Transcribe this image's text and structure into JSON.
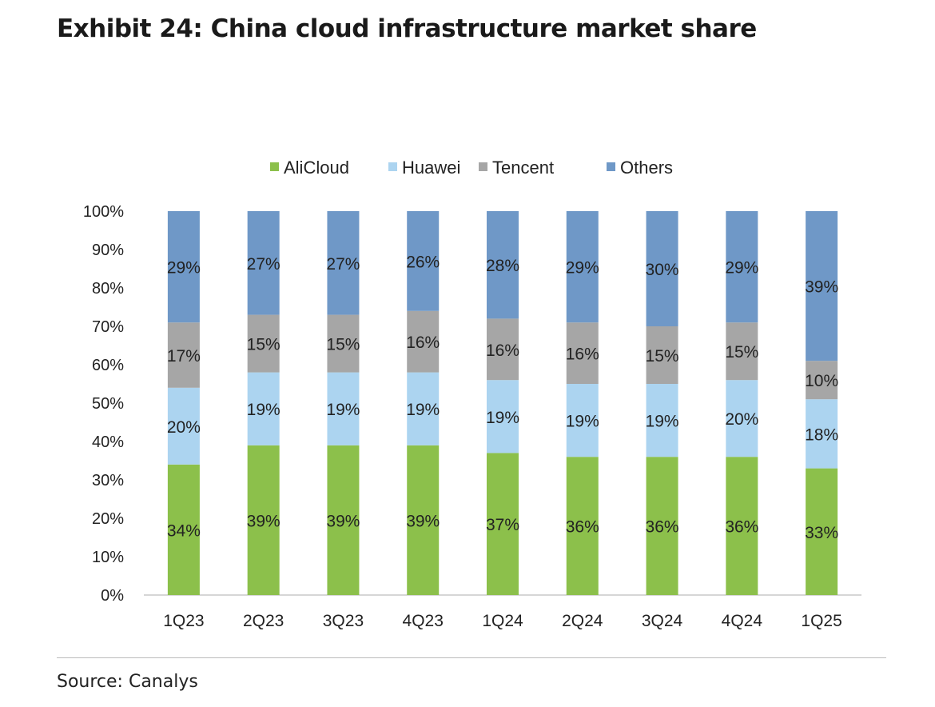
{
  "title": "Exhibit 24: China cloud infrastructure market share",
  "source": "Source: Canalys",
  "chart_data": {
    "type": "bar",
    "stacked": true,
    "categories": [
      "1Q23",
      "2Q23",
      "3Q23",
      "4Q23",
      "1Q24",
      "2Q24",
      "3Q24",
      "4Q24",
      "1Q25"
    ],
    "series": [
      {
        "name": "AliCloud",
        "color": "#8CC04B",
        "values": [
          34,
          39,
          39,
          39,
          37,
          36,
          36,
          36,
          33
        ]
      },
      {
        "name": "Huawei",
        "color": "#ACD4F0",
        "values": [
          20,
          19,
          19,
          19,
          19,
          19,
          19,
          20,
          18
        ]
      },
      {
        "name": "Tencent",
        "color": "#A6A6A6",
        "values": [
          17,
          15,
          15,
          16,
          16,
          16,
          15,
          15,
          10
        ]
      },
      {
        "name": "Others",
        "color": "#6F98C7",
        "values": [
          29,
          27,
          27,
          26,
          28,
          29,
          30,
          29,
          39
        ]
      }
    ],
    "yticks": [
      "0%",
      "10%",
      "20%",
      "30%",
      "40%",
      "50%",
      "60%",
      "70%",
      "80%",
      "90%",
      "100%"
    ],
    "ylim": [
      0,
      100
    ],
    "xlabel": "",
    "ylabel": "",
    "legend": "top-center",
    "grid": false
  }
}
